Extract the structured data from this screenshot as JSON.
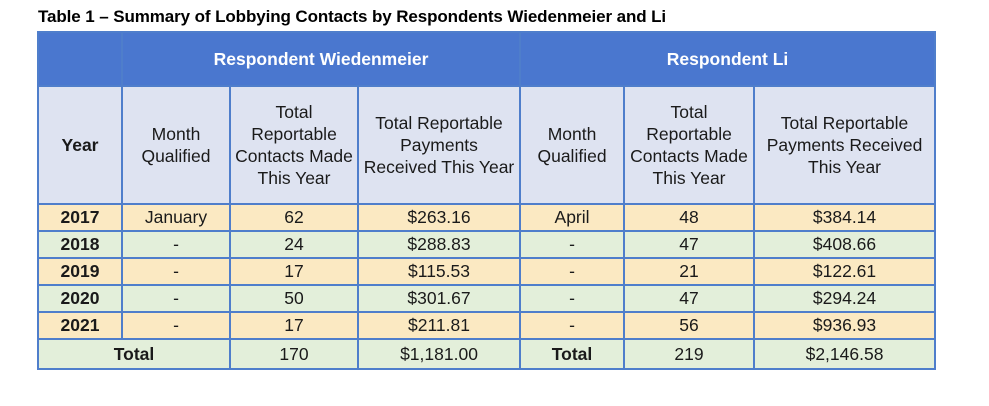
{
  "caption": "Table 1 – Summary of Lobbying Contacts by Respondents Wiedenmeier and Li",
  "groups": {
    "wiedenmeier": "Respondent Wiedenmeier",
    "li": "Respondent Li"
  },
  "headers": {
    "year": "Year",
    "month": "Month Qualified",
    "contacts": "Total Reportable Contacts Made This Year",
    "payments": "Total Reportable Payments Received This Year"
  },
  "rows": [
    {
      "year": "2017",
      "w_month": "January",
      "w_contacts": "62",
      "w_payments": "$263.16",
      "l_month": "April",
      "l_contacts": "48",
      "l_payments": "$384.14"
    },
    {
      "year": "2018",
      "w_month": "-",
      "w_contacts": "24",
      "w_payments": "$288.83",
      "l_month": "-",
      "l_contacts": "47",
      "l_payments": "$408.66"
    },
    {
      "year": "2019",
      "w_month": "-",
      "w_contacts": "17",
      "w_payments": "$115.53",
      "l_month": "-",
      "l_contacts": "21",
      "l_payments": "$122.61"
    },
    {
      "year": "2020",
      "w_month": "-",
      "w_contacts": "50",
      "w_payments": "$301.67",
      "l_month": "-",
      "l_contacts": "47",
      "l_payments": "$294.24"
    },
    {
      "year": "2021",
      "w_month": "-",
      "w_contacts": "17",
      "w_payments": "$211.81",
      "l_month": "-",
      "l_contacts": "56",
      "l_payments": "$936.93"
    }
  ],
  "totals": {
    "w_label": "Total",
    "w_contacts": "170",
    "w_payments": "$1,181.00",
    "l_label": "Total",
    "l_contacts": "219",
    "l_payments": "$2,146.58"
  },
  "colors": {
    "header_blue": "#4a77cf",
    "header_light": "#dee3f1",
    "row_tan": "#fbe9c2",
    "row_green": "#e3efda",
    "border": "#4f7ecb"
  }
}
